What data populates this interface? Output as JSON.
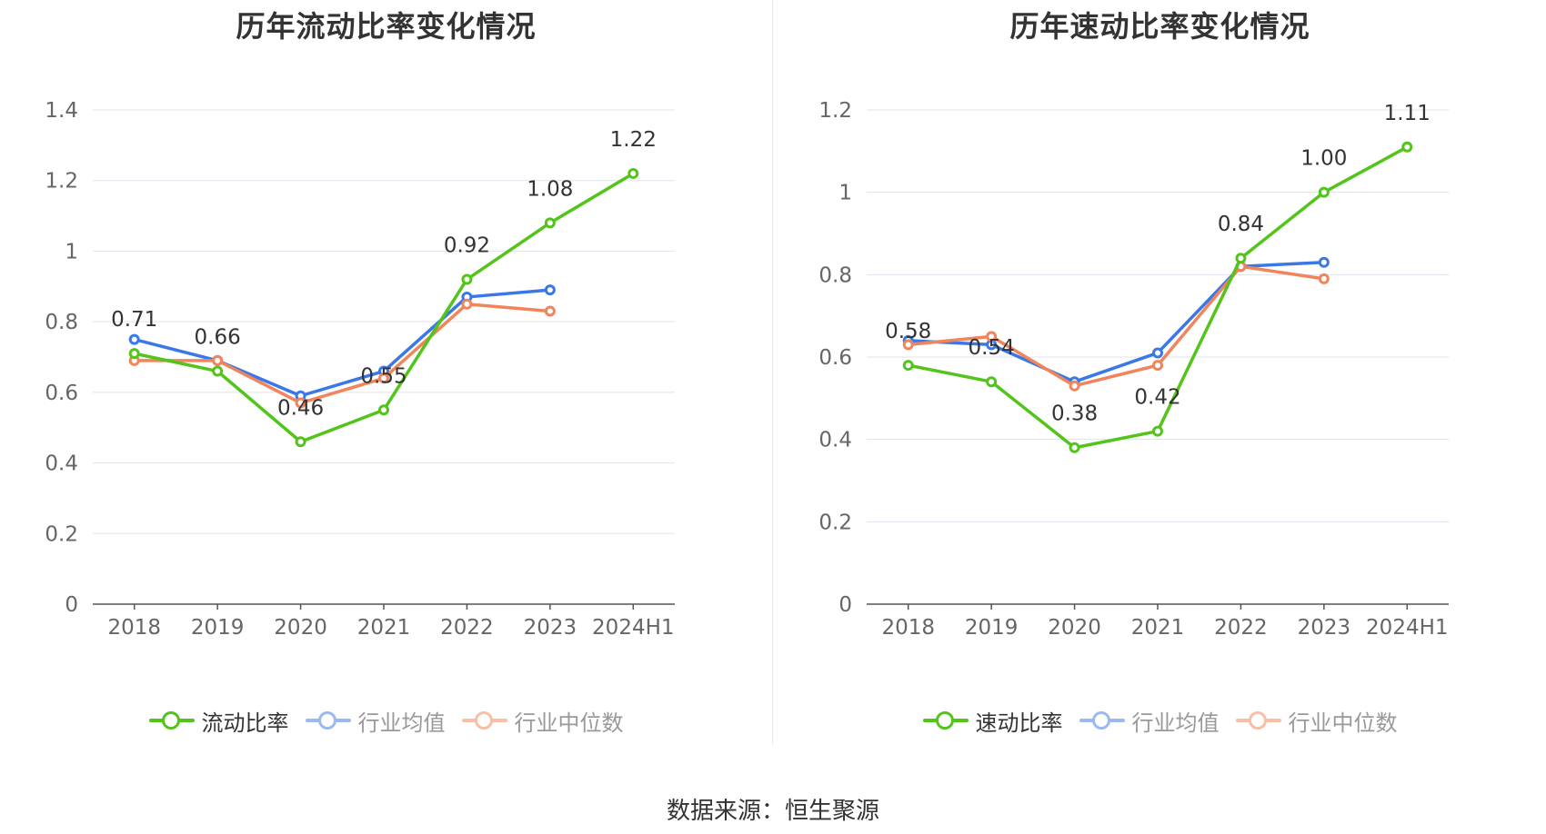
{
  "chart_data": [
    {
      "type": "line",
      "title": "历年流动比率变化情况",
      "categories": [
        "2018",
        "2019",
        "2020",
        "2021",
        "2022",
        "2023",
        "2024H1"
      ],
      "ylim": [
        0,
        1.4
      ],
      "yticks": [
        "0",
        "0.2",
        "0.4",
        "0.6",
        "0.8",
        "1",
        "1.2",
        "1.4"
      ],
      "grid": true,
      "legend_placement": "bottom",
      "series": [
        {
          "name": "流动比率",
          "color": "#52c41a",
          "values": [
            0.71,
            0.66,
            0.46,
            0.55,
            0.92,
            1.08,
            1.22
          ],
          "labels": [
            "0.71",
            "0.66",
            "0.46",
            "0.55",
            "0.92",
            "1.08",
            "1.22"
          ]
        },
        {
          "name": "行业均值",
          "color": "#3b78e7",
          "values": [
            0.75,
            0.69,
            0.59,
            0.66,
            0.87,
            0.89,
            null
          ]
        },
        {
          "name": "行业中位数",
          "color": "#f2845c",
          "values": [
            0.69,
            0.69,
            0.57,
            0.64,
            0.85,
            0.83,
            null
          ]
        }
      ]
    },
    {
      "type": "line",
      "title": "历年速动比率变化情况",
      "categories": [
        "2018",
        "2019",
        "2020",
        "2021",
        "2022",
        "2023",
        "2024H1"
      ],
      "ylim": [
        0,
        1.2
      ],
      "yticks": [
        "0",
        "0.2",
        "0.4",
        "0.6",
        "0.8",
        "1",
        "1.2"
      ],
      "grid": true,
      "legend_placement": "bottom",
      "series": [
        {
          "name": "速动比率",
          "color": "#52c41a",
          "values": [
            0.58,
            0.54,
            0.38,
            0.42,
            0.84,
            1.0,
            1.11
          ],
          "labels": [
            "0.58",
            "0.54",
            "0.38",
            "0.42",
            "0.84",
            "1.00",
            "1.11"
          ]
        },
        {
          "name": "行业均值",
          "color": "#3b78e7",
          "values": [
            0.64,
            0.63,
            0.54,
            0.61,
            0.82,
            0.83,
            null
          ]
        },
        {
          "name": "行业中位数",
          "color": "#f2845c",
          "values": [
            0.63,
            0.65,
            0.53,
            0.58,
            0.82,
            0.79,
            null
          ]
        }
      ]
    }
  ],
  "source": "数据来源：恒生聚源"
}
